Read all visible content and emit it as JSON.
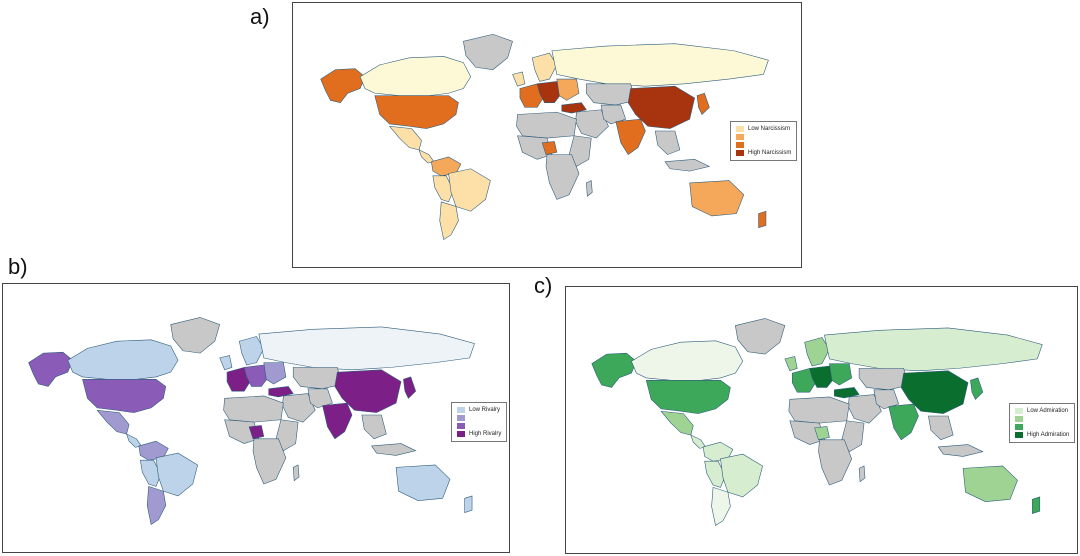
{
  "panels": [
    {
      "id": "a",
      "label": "a)",
      "legend": {
        "entries": [
          "Low Narcissism",
          "",
          "",
          "High Narcissism"
        ],
        "colors": [
          "#fde0a8",
          "#f6a85a",
          "#e06e1e",
          "#a8330f"
        ]
      },
      "palette": {
        "base": "#fdf8d6",
        "missing": "#c8c8c8",
        "c1": "#fde0a8",
        "c2": "#f6a85a",
        "c3": "#e06e1e",
        "c4": "#a8330f"
      }
    },
    {
      "id": "b",
      "label": "b)",
      "legend": {
        "entries": [
          "Low Rivalry",
          "",
          "",
          "High Rivalry"
        ],
        "colors": [
          "#bdd3ea",
          "#a09ad0",
          "#8a5cb8",
          "#7c1f86"
        ]
      },
      "palette": {
        "base": "#eef3f8",
        "missing": "#c8c8c8",
        "c1": "#bdd3ea",
        "c2": "#a09ad0",
        "c3": "#8a5cb8",
        "c4": "#7c1f86"
      }
    },
    {
      "id": "c",
      "label": "c)",
      "legend": {
        "entries": [
          "Low Admiration",
          "",
          "",
          "High Admiration"
        ],
        "colors": [
          "#d6eecf",
          "#9ed394",
          "#3ea85a",
          "#0a6e2e"
        ]
      },
      "palette": {
        "base": "#eef6ea",
        "missing": "#c8c8c8",
        "c1": "#d6eecf",
        "c2": "#9ed394",
        "c3": "#3ea85a",
        "c4": "#0a6e2e"
      }
    }
  ]
}
